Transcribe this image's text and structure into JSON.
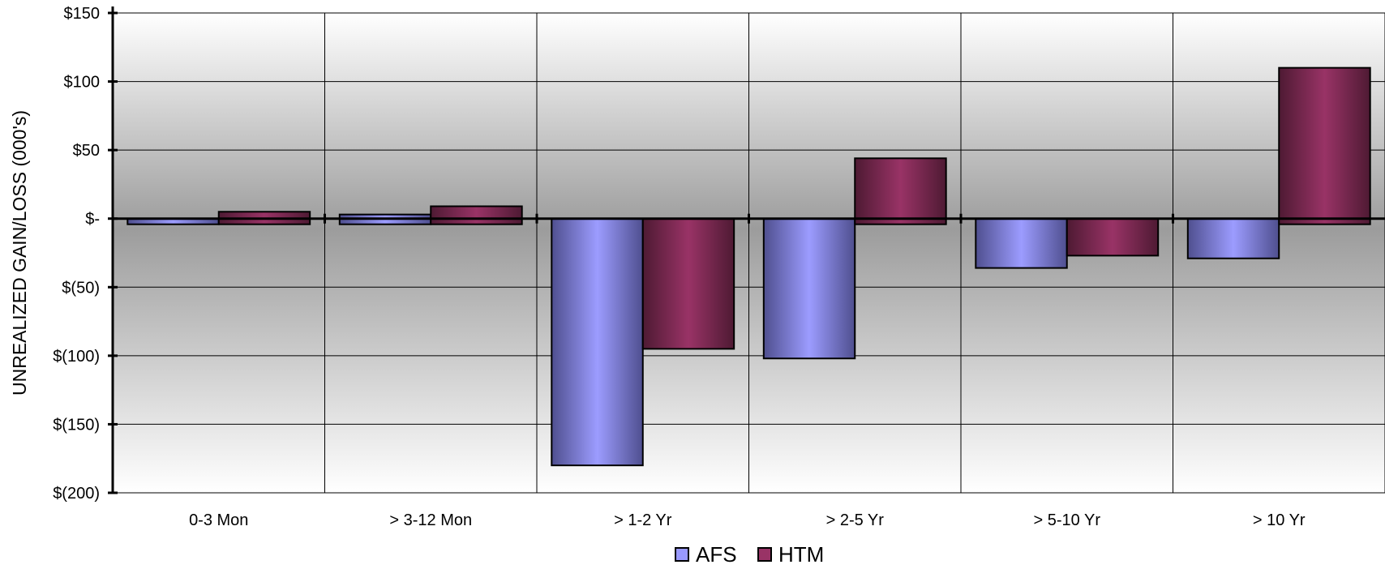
{
  "chart_data": {
    "type": "bar",
    "title": "",
    "xlabel": "",
    "ylabel": "UNREALIZED GAIN/LOSS (000's)",
    "categories": [
      "0-3 Mon",
      "> 3-12 Mon",
      "> 1-2 Yr",
      "> 2-5 Yr",
      "> 5-10 Yr",
      "> 10 Yr"
    ],
    "series": [
      {
        "name": "AFS",
        "values": [
          -3,
          3,
          -180,
          -102,
          -36,
          -29
        ],
        "color": "#9999ff"
      },
      {
        "name": "HTM",
        "values": [
          5,
          9,
          -95,
          44,
          -27,
          110
        ],
        "color": "#993366"
      }
    ],
    "ylim": [
      -200,
      150
    ],
    "yticks": [
      150,
      100,
      50,
      0,
      -50,
      -100,
      -150,
      -200
    ],
    "ytick_labels": [
      "$150",
      "$100",
      "$50",
      "$-",
      "$(50)",
      "$(100)",
      "$(150)",
      "$(200)"
    ],
    "grid": true,
    "legend": "bottom-center"
  }
}
